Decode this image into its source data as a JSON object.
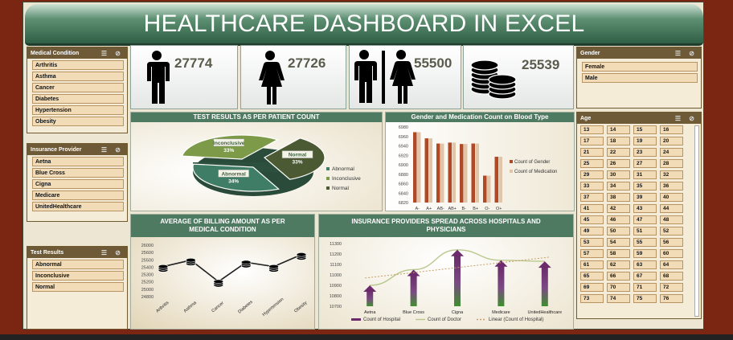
{
  "title": "HEALTHCARE DASHBOARD IN EXCEL",
  "kpis": [
    {
      "icon": "male-icon",
      "value": "27774"
    },
    {
      "icon": "female-icon",
      "value": "27726"
    },
    {
      "icon": "male-female-icon",
      "value": "55500"
    },
    {
      "icon": "coins-icon",
      "value": "25539"
    }
  ],
  "slicers": {
    "medical_condition": {
      "title": "Medical Condition",
      "items": [
        "Arthritis",
        "Asthma",
        "Cancer",
        "Diabetes",
        "Hypertension",
        "Obesity"
      ]
    },
    "insurance_provider": {
      "title": "Insurance Provider",
      "items": [
        "Aetna",
        "Blue Cross",
        "Cigna",
        "Medicare",
        "UnitedHealthcare"
      ]
    },
    "test_results": {
      "title": "Test Results",
      "items": [
        "Abnormal",
        "Inconclusive",
        "Normal"
      ]
    },
    "gender": {
      "title": "Gender",
      "items": [
        "Female",
        "Male"
      ]
    },
    "age": {
      "title": "Age",
      "items": [
        "13",
        "14",
        "15",
        "16",
        "17",
        "18",
        "19",
        "20",
        "21",
        "22",
        "23",
        "24",
        "25",
        "26",
        "27",
        "28",
        "29",
        "30",
        "31",
        "32",
        "33",
        "34",
        "35",
        "36",
        "37",
        "38",
        "39",
        "40",
        "41",
        "42",
        "43",
        "44",
        "45",
        "46",
        "47",
        "48",
        "49",
        "50",
        "51",
        "52",
        "53",
        "54",
        "55",
        "56",
        "57",
        "58",
        "59",
        "60",
        "61",
        "62",
        "63",
        "64",
        "65",
        "66",
        "67",
        "68",
        "69",
        "70",
        "71",
        "72",
        "73",
        "74",
        "75",
        "76"
      ]
    }
  },
  "charts": {
    "pie_title": "TEST RESULTS AS PER PATIENT COUNT",
    "blood_title": "Gender and Medication Count on Blood Type",
    "billing_title": "AVERAGE OF BILLING AMOUNT AS PER MEDICAL CONDITION",
    "insurance_title": "INSURANCE PROVIDERS SPREAD ACROSS HOSPITALS AND PHYSICIANS"
  },
  "chart_data": [
    {
      "type": "pie",
      "title": "TEST RESULTS AS PER PATIENT COUNT",
      "categories": [
        "Abnormal",
        "Inconclusive",
        "Normal"
      ],
      "values": [
        34,
        33,
        33
      ],
      "labels": [
        "Abnormal 34%",
        "Inconclusive 33%",
        "Normal 33%"
      ],
      "legend": "right",
      "colors": [
        "#3f7d66",
        "#7c9a48",
        "#4b5a33"
      ]
    },
    {
      "type": "bar",
      "title": "Gender and Medication Count on Blood Type",
      "categories": [
        "A-",
        "A+",
        "AB-",
        "AB+",
        "B-",
        "B+",
        "O-",
        "O+"
      ],
      "series": [
        {
          "name": "Count of Gender",
          "values": [
            6969,
            6956,
            6945,
            6947,
            6944,
            6945,
            6877,
            6917
          ]
        },
        {
          "name": "Count of Medication",
          "values": [
            6969,
            6956,
            6945,
            6947,
            6944,
            6945,
            6877,
            6917
          ]
        }
      ],
      "yticks": [
        "6820",
        "6840",
        "6860",
        "6880",
        "6900",
        "6920",
        "6940",
        "6960",
        "6980"
      ],
      "ylim": [
        6820,
        6980
      ],
      "legend": "right",
      "colors": [
        "#b04a26",
        "#e2c5a8"
      ]
    },
    {
      "type": "line",
      "title": "AVERAGE OF BILLING AMOUNT AS PER MEDICAL CONDITION",
      "categories": [
        "Arthritis",
        "Asthma",
        "Cancer",
        "Diabetes",
        "Hypertension",
        "Obesity"
      ],
      "values": [
        25500,
        25650,
        25150,
        25600,
        25500,
        25780
      ],
      "yticks": [
        "24800",
        "25000",
        "25200",
        "25300",
        "25400",
        "25500",
        "25600",
        "26000"
      ],
      "ylim": [
        24800,
        26000
      ]
    },
    {
      "type": "bar",
      "title": "INSURANCE PROVIDERS SPREAD ACROSS HOSPITALS AND PHYSICIANS",
      "categories": [
        "Aetna",
        "Blue Cross",
        "Cigna",
        "Medicare",
        "UnitedHealthcare"
      ],
      "series": [
        {
          "name": "Count of Hospital",
          "values": [
            10900,
            11050,
            11240,
            11140,
            11130
          ]
        },
        {
          "name": "Count of Doctor",
          "values": [
            10900,
            11050,
            11240,
            11140,
            11130
          ]
        },
        {
          "name": "Linear (Count of Hospital)",
          "values": [
            10970,
            11030,
            11080,
            11120,
            11170
          ]
        }
      ],
      "yticks": [
        "10700",
        "10800",
        "10900",
        "11000",
        "11100",
        "11200",
        "11300"
      ],
      "ylim": [
        10700,
        11300
      ],
      "legend": "bottom",
      "colors": [
        "#6b2a6b",
        "#b9c98e",
        "#c8a066"
      ]
    }
  ]
}
